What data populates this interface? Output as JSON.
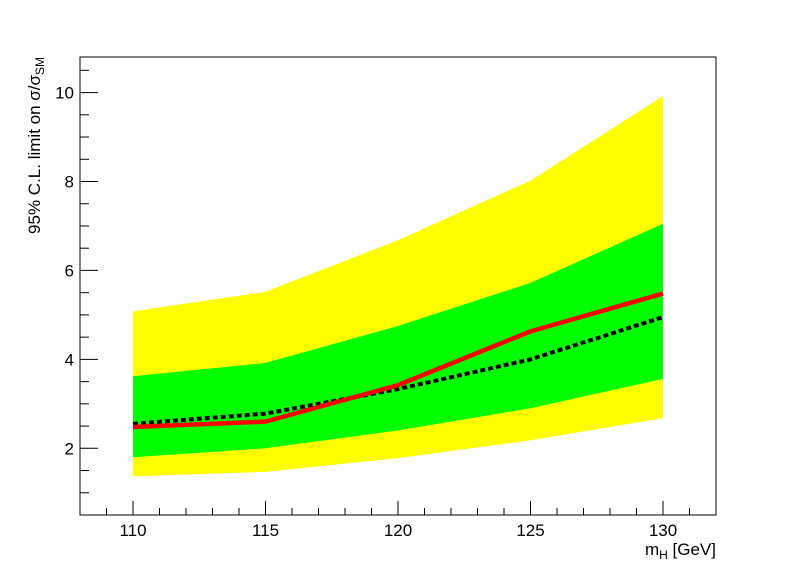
{
  "chart_data": {
    "type": "area",
    "x": [
      110,
      115,
      120,
      125,
      130
    ],
    "series": [
      {
        "role": "band-2sigma",
        "lower": [
          1.37,
          1.47,
          1.78,
          2.18,
          2.68
        ],
        "upper": [
          5.08,
          5.52,
          6.68,
          8.02,
          9.92
        ],
        "color": "#ffff00"
      },
      {
        "role": "band-1sigma",
        "lower": [
          1.8,
          2.0,
          2.4,
          2.9,
          3.56
        ],
        "upper": [
          3.62,
          3.92,
          4.75,
          5.72,
          7.05
        ],
        "color": "#00ff00"
      },
      {
        "role": "expected",
        "values": [
          2.55,
          2.78,
          3.33,
          4.0,
          4.95
        ],
        "color": "#000000",
        "style": "dashed"
      },
      {
        "role": "observed",
        "values": [
          2.48,
          2.6,
          3.42,
          4.63,
          5.48
        ],
        "color": "#ff0000",
        "style": "solid"
      }
    ],
    "xlim": [
      108,
      132
    ],
    "ylim": [
      0.5,
      10.8
    ],
    "x_ticks": [
      "110",
      "115",
      "120",
      "125",
      "130"
    ],
    "y_ticks": [
      "2",
      "4",
      "6",
      "8",
      "10"
    ],
    "xlabel_main": "m",
    "xlabel_sub": "H",
    "xlabel_unit": " [GeV]",
    "ylabel_main": "95% C.L. limit on σ/σ",
    "ylabel_sub": "SM",
    "grid": false
  }
}
